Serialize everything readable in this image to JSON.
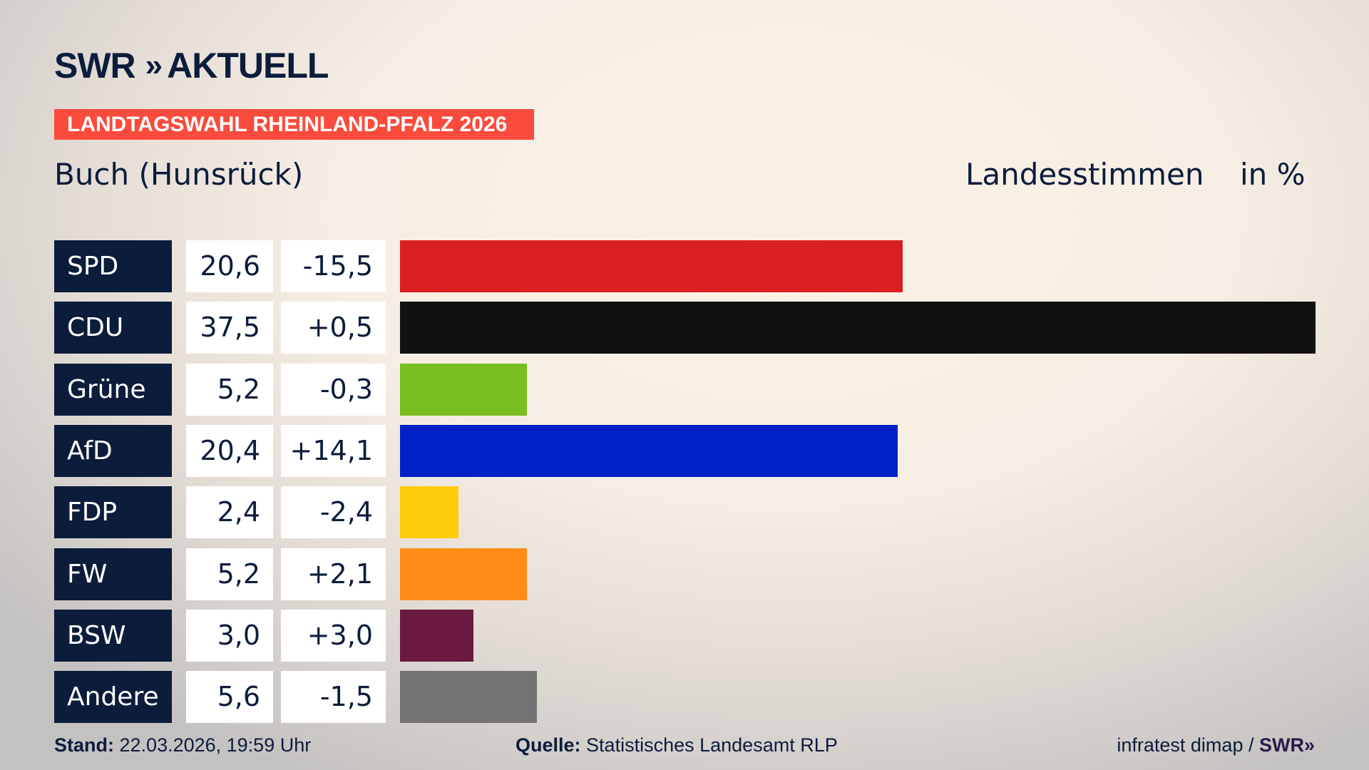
{
  "header": {
    "logo_text": "SWR",
    "logo_arrows": "»",
    "logo_suffix": "AKTUELL",
    "banner": "LANDTAGSWAHL RHEINLAND-PFALZ 2026",
    "place": "Buch (Hunsrück)",
    "metric": "Landesstimmen",
    "unit": "in %"
  },
  "chart_data": {
    "type": "bar",
    "orientation": "horizontal",
    "title": "Buch (Hunsrück)",
    "categories": [
      "SPD",
      "CDU",
      "Grüne",
      "AfD",
      "FDP",
      "FW",
      "BSW",
      "Andere"
    ],
    "values": [
      20.6,
      37.5,
      5.2,
      20.4,
      2.4,
      5.2,
      3.0,
      5.6
    ],
    "value_labels": [
      "20,6",
      "37,5",
      "5,2",
      "20,4",
      "2,4",
      "5,2",
      "3,0",
      "5,6"
    ],
    "diff_labels": [
      "-15,5",
      "+0,5",
      "-0,3",
      "+14,1",
      "-2,4",
      "+2,1",
      "+3,0",
      "-1,5"
    ],
    "colors": [
      "#d91f20",
      "#111111",
      "#78be20",
      "#0021c8",
      "#ffcc0a",
      "#ff8c16",
      "#6a1a3e",
      "#737373"
    ],
    "unit": "%"
  },
  "footer": {
    "stand_label": "Stand:",
    "stand_value": "22.03.2026, 19:59 Uhr",
    "source_label": "Quelle:",
    "source_value": "Statistisches Landesamt RLP",
    "credit": "infratest dimap /",
    "credit_logo": "SWR»"
  }
}
